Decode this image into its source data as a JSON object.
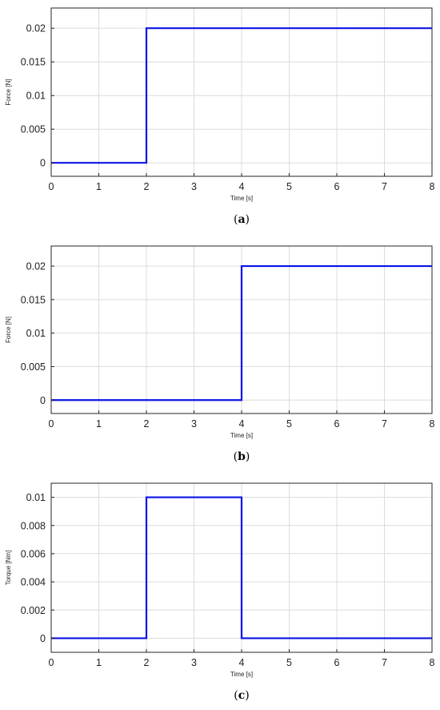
{
  "chart_data": [
    {
      "type": "line",
      "caption": "a",
      "xlabel": "Time [s]",
      "ylabel": "Force [N]",
      "xlim": [
        0,
        8
      ],
      "ylim": [
        -0.002,
        0.023
      ],
      "xticks": [
        "0",
        "1",
        "2",
        "3",
        "4",
        "5",
        "6",
        "7",
        "8"
      ],
      "yticks": [
        "0",
        "0.005",
        "0.01",
        "0.015",
        "0.02"
      ],
      "grid": true,
      "color": "#0a14e6",
      "series": [
        {
          "x": [
            0,
            2,
            2,
            8
          ],
          "y": [
            0,
            0,
            0.02,
            0.02
          ]
        }
      ]
    },
    {
      "type": "line",
      "caption": "b",
      "xlabel": "Time [s]",
      "ylabel": "Force [N]",
      "xlim": [
        0,
        8
      ],
      "ylim": [
        -0.002,
        0.023
      ],
      "xticks": [
        "0",
        "1",
        "2",
        "3",
        "4",
        "5",
        "6",
        "7",
        "8"
      ],
      "yticks": [
        "0",
        "0.005",
        "0.01",
        "0.015",
        "0.02"
      ],
      "grid": true,
      "color": "#0a14e6",
      "series": [
        {
          "x": [
            0,
            4,
            4,
            8
          ],
          "y": [
            0,
            0,
            0.02,
            0.02
          ]
        }
      ]
    },
    {
      "type": "line",
      "caption": "c",
      "xlabel": "Time [s]",
      "ylabel": "Torque [Nm]",
      "xlim": [
        0,
        8
      ],
      "ylim": [
        -0.001,
        0.011
      ],
      "xticks": [
        "0",
        "1",
        "2",
        "3",
        "4",
        "5",
        "6",
        "7",
        "8"
      ],
      "yticks": [
        "0",
        "0.002",
        "0.004",
        "0.006",
        "0.008",
        "0.01"
      ],
      "grid": true,
      "color": "#0a14e6",
      "series": [
        {
          "x": [
            0,
            2,
            2,
            4,
            4,
            8
          ],
          "y": [
            0,
            0,
            0.01,
            0.01,
            0,
            0
          ]
        }
      ]
    }
  ]
}
